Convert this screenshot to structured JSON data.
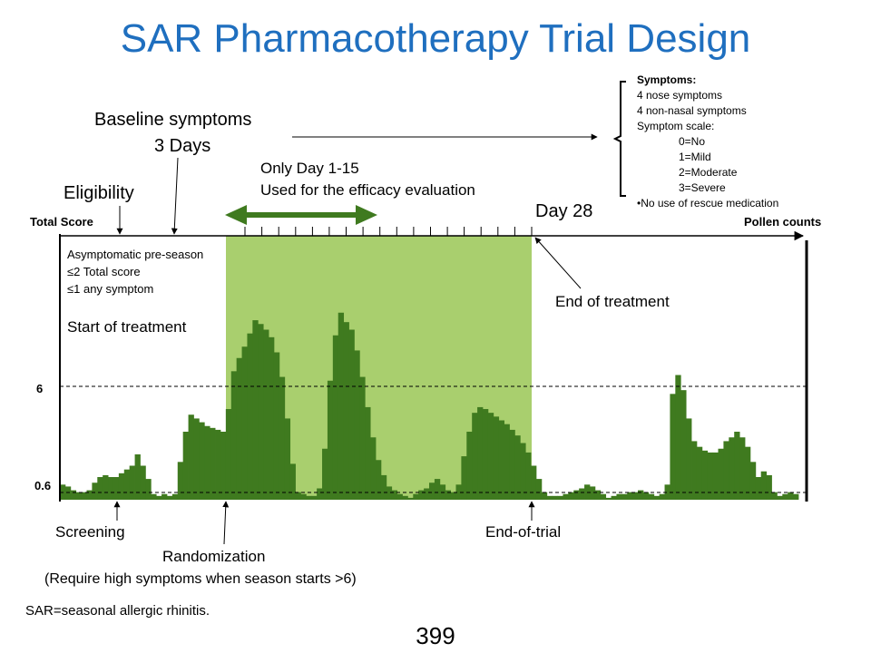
{
  "title": "SAR Pharmacotherapy Trial Design",
  "labels": {
    "baseline_line1": "Baseline symptoms",
    "baseline_line2": "3 Days",
    "eligibility": "Eligibility",
    "efficacy_line1": "Only Day 1-15",
    "efficacy_line2": "Used for the efficacy evaluation",
    "day28": "Day 28",
    "total_score": "Total Score",
    "pollen_counts": "Pollen counts",
    "pre_season_1": "Asymptomatic pre-season",
    "pre_season_2": "≤2 Total score",
    "pre_season_3": "≤1 any symptom",
    "start_treatment": "Start of treatment",
    "end_treatment": "End of treatment",
    "y6": "6",
    "y06": "0.6",
    "screening": "Screening",
    "randomization": "Randomization",
    "randomization_note": "(Require high symptoms when season starts >6)",
    "end_of_trial": "End-of-trial",
    "footnote": "SAR=seasonal allergic rhinitis.",
    "page_number": "399"
  },
  "symptoms_box": {
    "heading": "Symptoms:",
    "lines": [
      "4 nose symptoms",
      "4 non-nasal symptoms",
      "Symptom scale:"
    ],
    "scale": [
      "0=No",
      "1=Mild",
      "2=Moderate",
      "3=Severe"
    ],
    "note": "•No use of rescue medication"
  },
  "colors": {
    "title": "#1f6fbf",
    "bars": "#3f7a1f",
    "treatment_band": "#a9cf6e",
    "efficacy_arrow": "#3f7a1f"
  },
  "chart_data": {
    "type": "bar",
    "ylabel": "Total Score",
    "reference_lines": [
      6,
      0.6
    ],
    "series": [
      {
        "name": "Pollen counts",
        "values": [
          0.8,
          0.7,
          0.5,
          0.4,
          0.4,
          0.5,
          0.9,
          1.2,
          1.3,
          1.2,
          1.2,
          1.4,
          1.6,
          1.8,
          2.4,
          1.8,
          1.1,
          0.3,
          0.2,
          0.3,
          0.2,
          0.3,
          2.0,
          3.6,
          4.5,
          4.3,
          4.1,
          3.9,
          3.8,
          3.7,
          3.6,
          4.8,
          6.8,
          7.5,
          8.1,
          8.8,
          9.5,
          9.3,
          9.0,
          8.6,
          7.8,
          6.5,
          4.3,
          1.9,
          0.4,
          0.3,
          0.2,
          0.2,
          0.6,
          2.7,
          6.3,
          8.7,
          9.9,
          9.4,
          9.0,
          7.9,
          6.5,
          4.9,
          3.3,
          2.1,
          1.3,
          0.7,
          0.5,
          0.3,
          0.2,
          0.1,
          0.3,
          0.5,
          0.6,
          0.9,
          1.1,
          0.8,
          0.5,
          0.4,
          0.8,
          2.3,
          3.6,
          4.6,
          4.9,
          4.8,
          4.6,
          4.4,
          4.2,
          4.0,
          3.7,
          3.4,
          3.0,
          2.5,
          1.8,
          1.1,
          0.4,
          0.2,
          0.2,
          0.2,
          0.3,
          0.4,
          0.5,
          0.6,
          0.8,
          0.7,
          0.5,
          0.3,
          0.1,
          0.2,
          0.3,
          0.3,
          0.4,
          0.4,
          0.5,
          0.4,
          0.3,
          0.2,
          0.3,
          0.8,
          5.6,
          6.6,
          5.8,
          4.3,
          3.1,
          2.8,
          2.6,
          2.5,
          2.5,
          2.7,
          3.1,
          3.3,
          3.6,
          3.3,
          2.8,
          2.0,
          1.2,
          1.5,
          1.3,
          0.4,
          0.2,
          0.3,
          0.4,
          0.3
        ]
      }
    ],
    "treatment_ticks": 18
  }
}
